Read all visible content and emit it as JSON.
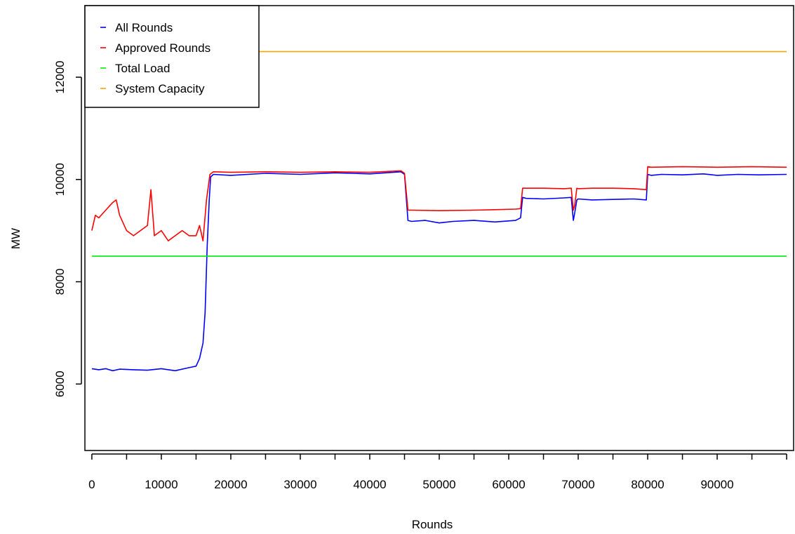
{
  "chart_data": {
    "type": "line",
    "title": "",
    "xlabel": "Rounds",
    "ylabel": "MW",
    "xlim": [
      -1000,
      101000
    ],
    "ylim": [
      4700,
      13400
    ],
    "x_ticks": [
      0,
      10000,
      20000,
      30000,
      40000,
      50000,
      60000,
      70000,
      80000,
      90000
    ],
    "x_minor_ticks": [
      5000,
      15000,
      25000,
      35000,
      45000,
      55000,
      65000,
      75000,
      85000,
      95000,
      100000
    ],
    "y_ticks": [
      6000,
      8000,
      10000,
      12000
    ],
    "grid": false,
    "legend_position": "top-left",
    "series": [
      {
        "name": "All Rounds",
        "color": "#0000ff",
        "x": [
          0,
          1000,
          2000,
          3000,
          4000,
          6000,
          8000,
          10000,
          12000,
          14000,
          15000,
          15500,
          16000,
          16300,
          16600,
          16900,
          17100,
          17500,
          20000,
          25000,
          30000,
          35000,
          40000,
          44500,
          45000,
          45500,
          46000,
          48000,
          50000,
          52000,
          55000,
          58000,
          61000,
          61700,
          62000,
          62500,
          65000,
          68000,
          69000,
          69300,
          69500,
          69800,
          70000,
          72000,
          75000,
          78000,
          79800,
          80000,
          80500,
          82000,
          85000,
          88000,
          90000,
          93000,
          96000,
          100000
        ],
        "y": [
          6300,
          6280,
          6300,
          6260,
          6290,
          6280,
          6270,
          6300,
          6260,
          6320,
          6350,
          6500,
          6800,
          7400,
          8700,
          9600,
          10050,
          10100,
          10080,
          10120,
          10100,
          10130,
          10110,
          10150,
          10100,
          9200,
          9180,
          9200,
          9150,
          9180,
          9200,
          9170,
          9200,
          9250,
          9650,
          9630,
          9620,
          9640,
          9650,
          9200,
          9350,
          9600,
          9620,
          9600,
          9610,
          9620,
          9600,
          10100,
          10080,
          10100,
          10090,
          10110,
          10080,
          10100,
          10090,
          10100
        ]
      },
      {
        "name": "Approved Rounds",
        "color": "#ff0000",
        "x": [
          0,
          500,
          1000,
          2000,
          3000,
          3500,
          4000,
          5000,
          6000,
          7000,
          8000,
          8500,
          9000,
          10000,
          11000,
          12000,
          13000,
          14000,
          15000,
          15500,
          16000,
          16500,
          17000,
          17500,
          20000,
          25000,
          30000,
          35000,
          40000,
          44500,
          45000,
          45500,
          46000,
          50000,
          55000,
          58000,
          61000,
          61700,
          62000,
          65000,
          68000,
          69000,
          69300,
          69500,
          69800,
          70000,
          72000,
          75000,
          78000,
          79800,
          80000,
          80500,
          85000,
          90000,
          95000,
          100000
        ],
        "y": [
          9000,
          9300,
          9250,
          9400,
          9550,
          9600,
          9300,
          9000,
          8900,
          9000,
          9100,
          9800,
          8900,
          9000,
          8800,
          8900,
          9000,
          8900,
          8900,
          9100,
          8800,
          9600,
          10100,
          10150,
          10140,
          10150,
          10140,
          10150,
          10140,
          10170,
          10120,
          9400,
          9400,
          9390,
          9400,
          9410,
          9420,
          9430,
          9830,
          9830,
          9820,
          9830,
          9400,
          9500,
          9830,
          9820,
          9830,
          9830,
          9820,
          9800,
          10250,
          10240,
          10250,
          10240,
          10250,
          10240
        ]
      },
      {
        "name": "Total Load",
        "color": "#00ee00",
        "x": [
          0,
          100000
        ],
        "y": [
          8500,
          8500
        ]
      },
      {
        "name": "System Capacity",
        "color": "#ffa500",
        "x": [
          0,
          100000
        ],
        "y": [
          12500,
          12500
        ]
      }
    ]
  }
}
